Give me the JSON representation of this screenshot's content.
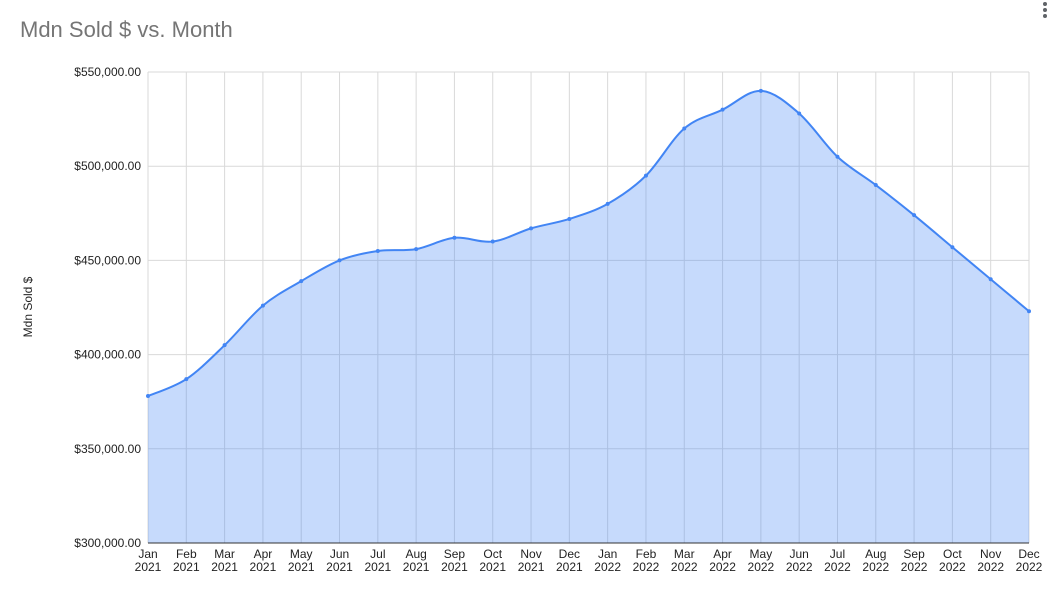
{
  "chart_data": {
    "type": "area",
    "title": "Mdn Sold $ vs. Month",
    "y_label": "Mdn Sold $",
    "categories": [
      "Jan 2021",
      "Feb 2021",
      "Mar 2021",
      "Apr 2021",
      "May 2021",
      "Jun 2021",
      "Jul 2021",
      "Aug 2021",
      "Sep 2021",
      "Oct 2021",
      "Nov 2021",
      "Dec 2021",
      "Jan 2022",
      "Feb 2022",
      "Mar 2022",
      "Apr 2022",
      "May 2022",
      "Jun 2022",
      "Jul 2022",
      "Aug 2022",
      "Sep 2022",
      "Oct 2022",
      "Nov 2022",
      "Dec 2022"
    ],
    "series": [
      {
        "name": "Mdn Sold $",
        "color": "#4285f4",
        "values": [
          378000,
          387000,
          405000,
          426000,
          439000,
          450000,
          455000,
          456000,
          462000,
          460000,
          467000,
          472000,
          480000,
          495000,
          520000,
          530000,
          540000,
          528000,
          505000,
          490000,
          474000,
          457000,
          440000,
          423000
        ]
      }
    ],
    "ylim": [
      300000,
      550000
    ],
    "yticks": [
      {
        "value": 300000,
        "label": "$300,000.00"
      },
      {
        "value": 350000,
        "label": "$350,000.00"
      },
      {
        "value": 400000,
        "label": "$400,000.00"
      },
      {
        "value": 450000,
        "label": "$450,000.00"
      },
      {
        "value": 500000,
        "label": "$500,000.00"
      },
      {
        "value": 550000,
        "label": "$550,000.00"
      }
    ],
    "grid": true
  }
}
